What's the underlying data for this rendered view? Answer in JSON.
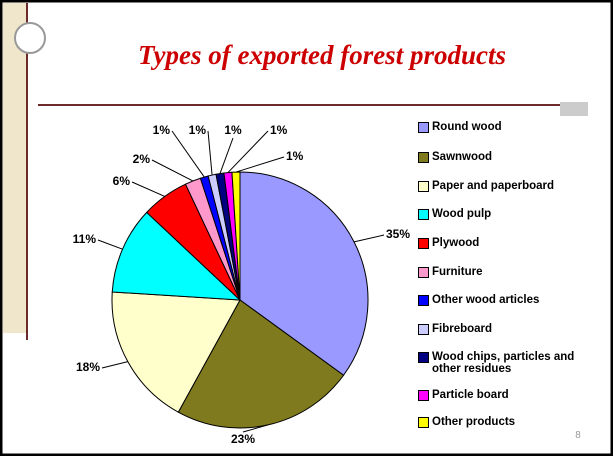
{
  "chart_data": {
    "type": "pie",
    "title": "Types of exported forest products",
    "categories": [
      "Round wood",
      "Sawnwood",
      "Paper and paperboard",
      "Wood pulp",
      "Plywood",
      "Furniture",
      "Other wood articles",
      "Fibreboard",
      "Wood chips, particles and other residues",
      "Particle board",
      "Other products"
    ],
    "values": [
      35,
      23,
      18,
      11,
      6,
      2,
      1,
      1,
      1,
      1,
      1
    ],
    "value_labels": [
      "35%",
      "23%",
      "18%",
      "11%",
      "6%",
      "2%",
      "1%",
      "1%",
      "1%",
      "1%",
      "1%"
    ],
    "colors": [
      "#9999ff",
      "#7f7a1e",
      "#ffffcc",
      "#00ffff",
      "#ff0000",
      "#ff99cc",
      "#0000ff",
      "#ccccff",
      "#000080",
      "#ff00ff",
      "#ffff00"
    ],
    "legend": "right"
  },
  "slide_number": "8"
}
